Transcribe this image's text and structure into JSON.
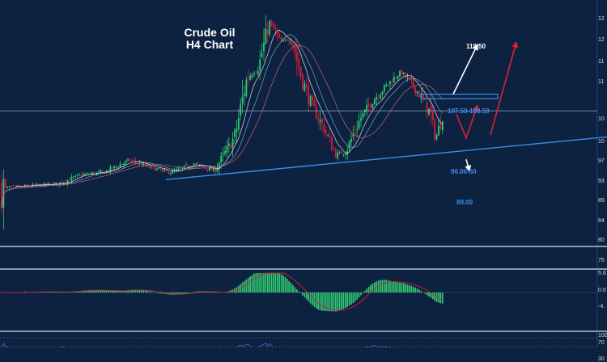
{
  "title_line1": "Crude Oil",
  "title_line2": "H4 Chart",
  "colors": {
    "background": "#0d2240",
    "bull": "#2ecc71",
    "bear": "#d81b3a",
    "trendline": "#3a8ef0",
    "annotation_blue": "#3a8ef0",
    "annotation_white": "#ffffff",
    "arrow_red": "#e02030",
    "panel_divider": "#b8bec8"
  },
  "annotations": {
    "target_high": "119.50",
    "resistance_zone": "107.50-108.50",
    "support_zone": "96.00-50",
    "target_low": "89.00"
  },
  "chart_data": {
    "type": "candlestick",
    "title": "Crude Oil H4 Chart",
    "price_axis_ticks": [
      "12",
      "12",
      "11",
      "11",
      "10",
      "10",
      "97",
      "93",
      "89",
      "84",
      "80",
      "75"
    ],
    "price_axis_note": "right-edge price labels are truncated in the screenshot",
    "ylim": [
      75,
      128
    ],
    "price_path": [
      [
        0,
        87.5
      ],
      [
        40,
        88.2
      ],
      [
        70,
        88.5
      ],
      [
        100,
        90.5
      ],
      [
        130,
        91.3
      ],
      [
        160,
        93.8
      ],
      [
        190,
        92.0
      ],
      [
        210,
        91.0
      ],
      [
        240,
        93.0
      ],
      [
        265,
        91.5
      ],
      [
        290,
        99.0
      ],
      [
        305,
        112.0
      ],
      [
        320,
        115.0
      ],
      [
        333,
        124.5
      ],
      [
        347,
        120.0
      ],
      [
        360,
        121.0
      ],
      [
        372,
        112.5
      ],
      [
        385,
        106.0
      ],
      [
        400,
        101.0
      ],
      [
        415,
        95.0
      ],
      [
        428,
        96.0
      ],
      [
        445,
        103.0
      ],
      [
        460,
        107.0
      ],
      [
        478,
        110.5
      ],
      [
        495,
        113.5
      ],
      [
        510,
        110.5
      ],
      [
        520,
        108.0
      ],
      [
        532,
        104.0
      ],
      [
        538,
        98.5
      ],
      [
        548,
        104.5
      ]
    ],
    "horizontal_level": 104.8,
    "resistance_band": [
      107.5,
      108.5
    ],
    "trendline": {
      "from": [
        205,
        89.5
      ],
      "to": [
        750,
        99.0
      ]
    },
    "projection_paths": [
      {
        "color": "white",
        "points": [
          [
            560,
            108.5
          ],
          [
            590,
            119.5
          ]
        ]
      },
      {
        "color": "red",
        "points": [
          [
            564,
            104.0
          ],
          [
            576,
            98.8
          ],
          [
            590,
            106.0
          ]
        ]
      },
      {
        "color": "red",
        "points": [
          [
            606,
            99.5
          ],
          [
            638,
            120.0
          ]
        ]
      },
      {
        "color": "white",
        "points": [
          [
            576,
            94.0
          ],
          [
            580,
            91.5
          ]
        ]
      }
    ],
    "macd_axis_ticks": [
      "5.6",
      "0.0",
      "-4."
    ],
    "rsi_axis_ticks": [
      "100",
      "70",
      "30"
    ]
  }
}
